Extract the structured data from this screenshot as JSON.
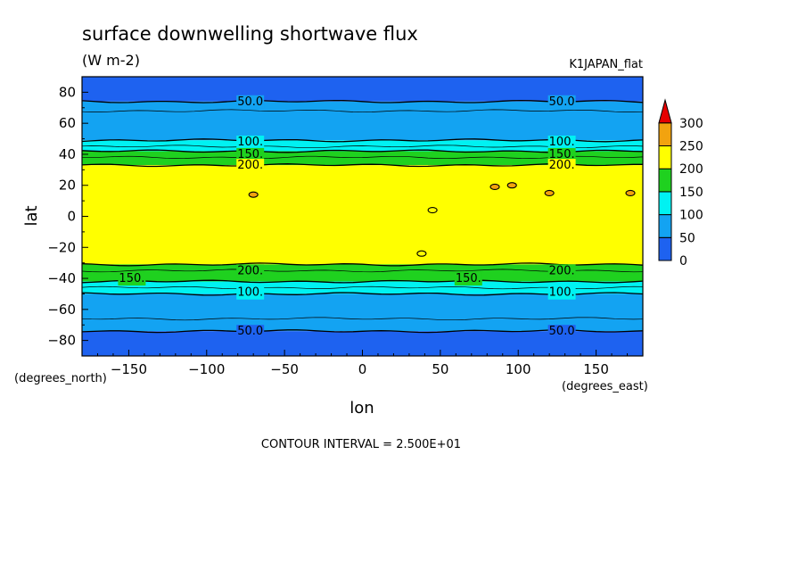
{
  "chart_data": {
    "type": "contour",
    "title": "surface downwelling shortwave flux",
    "units": "(W m-2)",
    "dataset": "K1JAPAN_flat",
    "xlabel": "lon",
    "ylabel": "lat",
    "x_units": "(degrees_east)",
    "y_units": "(degrees_north)",
    "xlim": [
      -180,
      180
    ],
    "ylim": [
      -90,
      90
    ],
    "x_ticks": [
      -150,
      -100,
      -50,
      0,
      50,
      100,
      150
    ],
    "y_ticks": [
      80,
      60,
      40,
      20,
      0,
      -20,
      -40,
      -60,
      -80
    ],
    "footer": "CONTOUR INTERVAL = 2.500E+01",
    "colorbar": {
      "ticks": [
        0,
        50,
        100,
        150,
        200,
        250,
        300
      ],
      "levels": [
        {
          "from": 0,
          "to": 50,
          "color": "#1e62f0"
        },
        {
          "from": 50,
          "to": 100,
          "color": "#13a3f2"
        },
        {
          "from": 100,
          "to": 150,
          "color": "#00f2f2"
        },
        {
          "from": 150,
          "to": 200,
          "color": "#1fd11f"
        },
        {
          "from": 200,
          "to": 250,
          "color": "#ffff00"
        },
        {
          "from": 250,
          "to": 300,
          "color": "#f2a30f"
        },
        {
          "from": 300,
          "to": null,
          "color": "#e60000"
        }
      ]
    },
    "bands": [
      {
        "lat_from": 90,
        "lat_to": 74,
        "value": 25
      },
      {
        "lat_from": 74,
        "lat_to": 49,
        "value": 75
      },
      {
        "lat_from": 49,
        "lat_to": 42,
        "value": 125
      },
      {
        "lat_from": 42,
        "lat_to": 33,
        "value": 175
      },
      {
        "lat_from": 33,
        "lat_to": -31,
        "value": 225
      },
      {
        "lat_from": -31,
        "lat_to": -42,
        "value": 175
      },
      {
        "lat_from": -42,
        "lat_to": -50,
        "value": 125
      },
      {
        "lat_from": -50,
        "lat_to": -74,
        "value": 75
      },
      {
        "lat_from": -74,
        "lat_to": -90,
        "value": 25
      }
    ],
    "contour_lines": [
      {
        "lat": 74,
        "value": 50
      },
      {
        "lat": 68,
        "value": 75
      },
      {
        "lat": 49,
        "value": 100
      },
      {
        "lat": 45,
        "value": 125
      },
      {
        "lat": 42,
        "value": 150
      },
      {
        "lat": 38,
        "value": 175
      },
      {
        "lat": 33,
        "value": 200
      },
      {
        "lat": -31,
        "value": 200
      },
      {
        "lat": -35,
        "value": 175
      },
      {
        "lat": -42,
        "value": 150
      },
      {
        "lat": -46,
        "value": 125
      },
      {
        "lat": -50,
        "value": 100
      },
      {
        "lat": -66,
        "value": 75
      },
      {
        "lat": -74,
        "value": 50
      }
    ],
    "contour_labels": [
      {
        "lon": -72,
        "lat": 74,
        "text": "50.0"
      },
      {
        "lon": 128,
        "lat": 74,
        "text": "50.0"
      },
      {
        "lon": -72,
        "lat": 48,
        "text": "100."
      },
      {
        "lon": 128,
        "lat": 48,
        "text": "100."
      },
      {
        "lon": -72,
        "lat": 40,
        "text": "150."
      },
      {
        "lon": 128,
        "lat": 40,
        "text": "150."
      },
      {
        "lon": -72,
        "lat": 33,
        "text": "200."
      },
      {
        "lon": 128,
        "lat": 33,
        "text": "200."
      },
      {
        "lon": -72,
        "lat": -35,
        "text": "200."
      },
      {
        "lon": 128,
        "lat": -35,
        "text": "200."
      },
      {
        "lon": -148,
        "lat": -40,
        "text": "150."
      },
      {
        "lon": 68,
        "lat": -40,
        "text": "150."
      },
      {
        "lon": -72,
        "lat": -49,
        "text": "100."
      },
      {
        "lon": 128,
        "lat": -49,
        "text": "100."
      },
      {
        "lon": -72,
        "lat": -74,
        "text": "50.0"
      },
      {
        "lon": 128,
        "lat": -74,
        "text": "50.0"
      }
    ],
    "patches": [
      {
        "lon": -70,
        "lat": 14,
        "value": 275
      },
      {
        "lon": 85,
        "lat": 19,
        "value": 275
      },
      {
        "lon": 96,
        "lat": 20,
        "value": 275
      },
      {
        "lon": 120,
        "lat": 15,
        "value": 275
      },
      {
        "lon": 172,
        "lat": 15,
        "value": 275
      },
      {
        "lon": 38,
        "lat": -24,
        "value": 225
      },
      {
        "lon": 45,
        "lat": 4,
        "value": 225
      }
    ]
  }
}
